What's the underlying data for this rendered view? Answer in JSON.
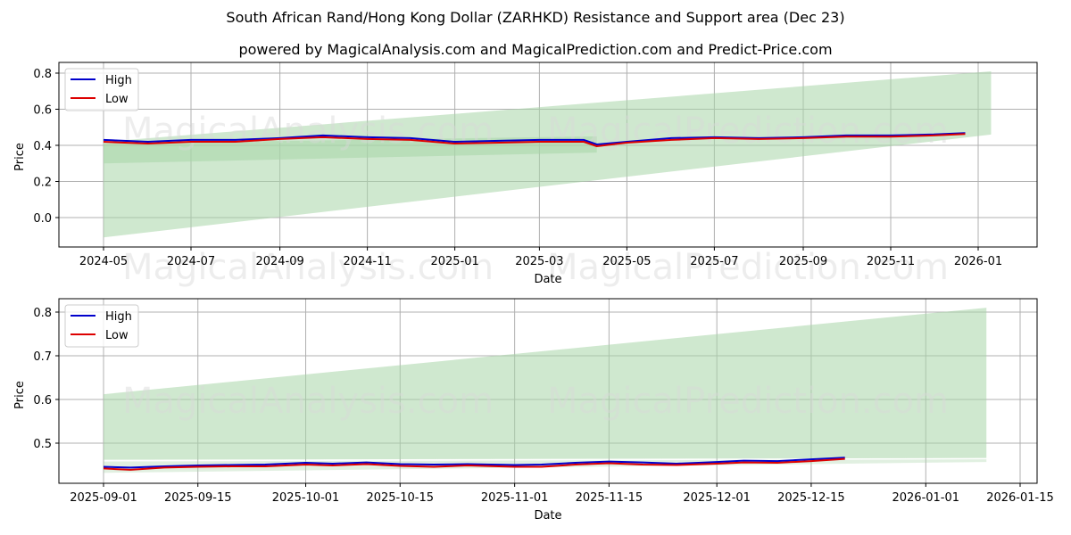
{
  "title": "South African Rand/Hong Kong Dollar (ZARHKD) Resistance and Support area (Dec 23)",
  "subtitle": "powered by MagicalAnalysis.com and MagicalPrediction.com and Predict-Price.com",
  "watermarks": [
    "MagicalAnalysis.com",
    "MagicalPrediction.com"
  ],
  "colors": {
    "high": "#0000cc",
    "low": "#dd0000",
    "band": "#a8d5a8",
    "grid": "#b0b0b0"
  },
  "chart_data": [
    {
      "type": "line",
      "title": "",
      "xlabel": "Date",
      "ylabel": "Price",
      "ylim": [
        -0.16,
        0.85
      ],
      "grid": true,
      "legend": {
        "position": "upper left",
        "entries": [
          "High",
          "Low"
        ]
      },
      "x_ticks": [
        "2024-05",
        "2024-07",
        "2024-09",
        "2024-11",
        "2025-01",
        "2025-03",
        "2025-05",
        "2025-07",
        "2025-09",
        "2025-11",
        "2026-01"
      ],
      "y_ticks": [
        "0.0",
        "0.2",
        "0.4",
        "0.6",
        "0.8"
      ],
      "x": [
        "2024-05-01",
        "2024-06-01",
        "2024-07-01",
        "2024-08-01",
        "2024-09-01",
        "2024-10-01",
        "2024-11-01",
        "2024-12-01",
        "2025-01-01",
        "2025-02-01",
        "2025-03-01",
        "2025-04-01",
        "2025-04-10",
        "2025-05-01",
        "2025-06-01",
        "2025-07-01",
        "2025-08-01",
        "2025-09-01",
        "2025-10-01",
        "2025-11-01",
        "2025-12-01",
        "2025-12-23"
      ],
      "series": [
        {
          "name": "High",
          "values": [
            0.43,
            0.42,
            0.43,
            0.43,
            0.44,
            0.455,
            0.445,
            0.44,
            0.42,
            0.425,
            0.43,
            0.43,
            0.405,
            0.42,
            0.44,
            0.445,
            0.44,
            0.445,
            0.455,
            0.455,
            0.46,
            0.468
          ]
        },
        {
          "name": "Low",
          "values": [
            0.42,
            0.41,
            0.42,
            0.42,
            0.435,
            0.445,
            0.435,
            0.43,
            0.41,
            0.415,
            0.42,
            0.42,
            0.395,
            0.415,
            0.43,
            0.44,
            0.435,
            0.44,
            0.448,
            0.448,
            0.455,
            0.463
          ]
        }
      ],
      "bands": [
        {
          "name": "resistance-support-wide",
          "x_start": "2024-05-01",
          "x_end": "2026-01-10",
          "lower_start": -0.11,
          "lower_end": 0.46,
          "upper_start": 0.42,
          "upper_end": 0.81
        },
        {
          "name": "support-narrow",
          "x_start": "2024-05-01",
          "x_end": "2025-04-10",
          "lower_start": 0.3,
          "lower_end": 0.36,
          "upper_start": 0.41,
          "upper_end": 0.45
        }
      ]
    },
    {
      "type": "line",
      "title": "",
      "xlabel": "Date",
      "ylabel": "Price",
      "ylim": [
        0.41,
        0.83
      ],
      "grid": true,
      "legend": {
        "position": "upper left",
        "entries": [
          "High",
          "Low"
        ]
      },
      "x_ticks": [
        "2025-09-01",
        "2025-09-15",
        "2025-10-01",
        "2025-10-15",
        "2025-11-01",
        "2025-11-15",
        "2025-12-01",
        "2025-12-15",
        "2026-01-01",
        "2026-01-15"
      ],
      "y_ticks": [
        "0.5",
        "0.6",
        "0.7",
        "0.8"
      ],
      "x": [
        "2025-09-01",
        "2025-09-05",
        "2025-09-10",
        "2025-09-15",
        "2025-09-20",
        "2025-09-25",
        "2025-10-01",
        "2025-10-05",
        "2025-10-10",
        "2025-10-15",
        "2025-10-20",
        "2025-10-25",
        "2025-11-01",
        "2025-11-05",
        "2025-11-10",
        "2025-11-15",
        "2025-11-20",
        "2025-11-25",
        "2025-12-01",
        "2025-12-05",
        "2025-12-10",
        "2025-12-15",
        "2025-12-20"
      ],
      "series": [
        {
          "name": "High",
          "values": [
            0.446,
            0.444,
            0.447,
            0.449,
            0.45,
            0.451,
            0.455,
            0.453,
            0.456,
            0.452,
            0.451,
            0.452,
            0.45,
            0.451,
            0.455,
            0.458,
            0.456,
            0.453,
            0.457,
            0.46,
            0.459,
            0.463,
            0.467
          ]
        },
        {
          "name": "Low",
          "values": [
            0.442,
            0.439,
            0.444,
            0.446,
            0.447,
            0.447,
            0.451,
            0.449,
            0.452,
            0.448,
            0.446,
            0.449,
            0.446,
            0.446,
            0.451,
            0.454,
            0.451,
            0.45,
            0.453,
            0.456,
            0.455,
            0.459,
            0.464
          ]
        }
      ],
      "bands": [
        {
          "name": "resistance",
          "x_start": "2025-09-01",
          "x_end": "2026-01-10",
          "lower_start": 0.462,
          "lower_end": 0.466,
          "upper_start": 0.612,
          "upper_end": 0.81
        },
        {
          "name": "support",
          "x_start": "2025-09-01",
          "x_end": "2026-01-10",
          "lower_start": 0.432,
          "lower_end": 0.457,
          "upper_start": 0.458,
          "upper_end": 0.463
        }
      ]
    }
  ]
}
